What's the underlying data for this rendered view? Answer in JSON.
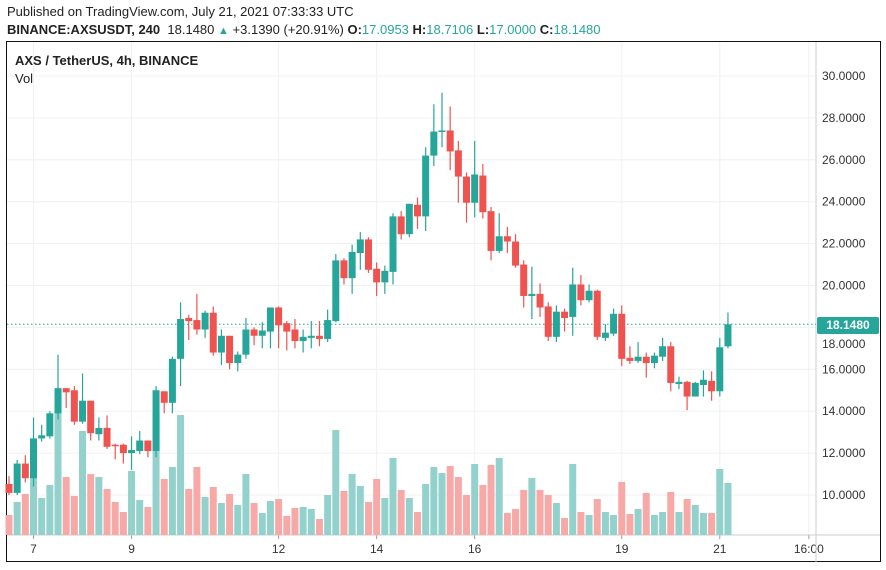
{
  "header": {
    "published": "Published on TradingView.com, July 21, 2021 07:33:33 UTC",
    "symbol": "BINANCE:AXSUSDT, 240",
    "last": "18.1480",
    "change": "+3.1390 (+20.91%)",
    "o_label": "O:",
    "o": "17.0953",
    "h_label": "H:",
    "h": "18.7106",
    "l_label": "L:",
    "l": "17.0000",
    "c_label": "C:",
    "c": "18.1480"
  },
  "legend": {
    "title": "AXS / TetherUS, 4h, BINANCE",
    "vol": "Vol"
  },
  "colors": {
    "up": "#26a69a",
    "down": "#ef5350",
    "vol_up": "#93d2cc",
    "vol_down": "#f7a9a7",
    "grid": "#f0f0f0"
  },
  "chart_data": {
    "type": "candlestick",
    "title": "AXS / TetherUS, 4h, BINANCE",
    "ylim": [
      8.2,
      31.5
    ],
    "y_ticks": [
      "10.0000",
      "12.0000",
      "14.0000",
      "16.0000",
      "18.0000",
      "20.0000",
      "22.0000",
      "24.0000",
      "26.0000",
      "28.0000",
      "30.0000"
    ],
    "y_tick_values": [
      10,
      12,
      14,
      16,
      18,
      20,
      22,
      24,
      26,
      28,
      30
    ],
    "x_ticks": [
      {
        "label": "7",
        "index": 3
      },
      {
        "label": "9",
        "index": 15
      },
      {
        "label": "12",
        "index": 33
      },
      {
        "label": "14",
        "index": 45
      },
      {
        "label": "16",
        "index": 57
      },
      {
        "label": "19",
        "index": 75
      },
      {
        "label": "21",
        "index": 87
      },
      {
        "label": "16:00",
        "index": 97.9
      }
    ],
    "last_price": "18.1480",
    "last_price_value": 18.148,
    "fields": [
      "open",
      "high",
      "low",
      "close",
      "volume_relative"
    ],
    "candles": [
      [
        10.53,
        10.9,
        10.0,
        10.1,
        20
      ],
      [
        10.1,
        11.67,
        10.0,
        11.5,
        33
      ],
      [
        11.5,
        11.9,
        10.6,
        10.8,
        41
      ],
      [
        10.8,
        13.7,
        10.4,
        12.7,
        85
      ],
      [
        12.7,
        13.35,
        12.55,
        12.85,
        37
      ],
      [
        12.8,
        14.0,
        12.7,
        13.9,
        50
      ],
      [
        13.9,
        16.7,
        13.6,
        15.1,
        123
      ],
      [
        15.1,
        15.1,
        14.15,
        14.9,
        58
      ],
      [
        15.0,
        15.2,
        13.35,
        13.5,
        39
      ],
      [
        13.5,
        15.8,
        13.4,
        14.5,
        104
      ],
      [
        14.5,
        14.5,
        12.6,
        12.95,
        61
      ],
      [
        12.9,
        13.7,
        12.6,
        13.2,
        58
      ],
      [
        13.2,
        13.8,
        12.2,
        12.3,
        46
      ],
      [
        12.4,
        12.45,
        11.7,
        12.35,
        33
      ],
      [
        12.4,
        12.45,
        11.5,
        12.0,
        23
      ],
      [
        12.0,
        12.8,
        11.2,
        12.15,
        64
      ],
      [
        12.1,
        13.05,
        11.95,
        12.6,
        35
      ],
      [
        12.6,
        12.6,
        11.8,
        12.1,
        28
      ],
      [
        12.1,
        15.2,
        11.8,
        15.0,
        122
      ],
      [
        14.95,
        14.95,
        13.9,
        14.4,
        56
      ],
      [
        14.4,
        16.6,
        13.9,
        16.5,
        68
      ],
      [
        16.5,
        19.2,
        15.2,
        18.4,
        120
      ],
      [
        18.45,
        18.6,
        17.4,
        18.3,
        46
      ],
      [
        18.35,
        19.6,
        17.65,
        17.9,
        68
      ],
      [
        17.9,
        18.8,
        17.5,
        18.7,
        38
      ],
      [
        18.7,
        19.0,
        16.65,
        16.8,
        48
      ],
      [
        16.8,
        17.9,
        16.2,
        17.6,
        32
      ],
      [
        17.6,
        17.6,
        16.0,
        16.3,
        41
      ],
      [
        16.3,
        16.85,
        15.9,
        16.7,
        30
      ],
      [
        16.7,
        18.45,
        16.5,
        17.9,
        61
      ],
      [
        17.9,
        18.0,
        17.15,
        17.6,
        32
      ],
      [
        17.6,
        18.25,
        17.0,
        17.85,
        22
      ],
      [
        17.8,
        18.95,
        17.0,
        18.95,
        34
      ],
      [
        18.95,
        19.0,
        17.0,
        18.1,
        36
      ],
      [
        18.2,
        18.3,
        16.9,
        17.8,
        19
      ],
      [
        17.9,
        18.4,
        17.0,
        17.35,
        27
      ],
      [
        17.35,
        17.9,
        16.8,
        17.55,
        28
      ],
      [
        17.5,
        18.3,
        17.0,
        17.6,
        26
      ],
      [
        17.6,
        18.3,
        17.1,
        17.45,
        16
      ],
      [
        17.45,
        18.85,
        17.3,
        18.35,
        40
      ],
      [
        18.3,
        21.5,
        18.25,
        21.2,
        105
      ],
      [
        21.2,
        21.3,
        20.05,
        20.35,
        44
      ],
      [
        20.35,
        21.95,
        19.6,
        21.6,
        61
      ],
      [
        21.55,
        22.55,
        20.75,
        22.2,
        49
      ],
      [
        22.2,
        22.3,
        20.6,
        20.75,
        33
      ],
      [
        20.8,
        21.1,
        19.5,
        20.15,
        56
      ],
      [
        20.15,
        20.95,
        19.6,
        20.7,
        37
      ],
      [
        20.65,
        23.45,
        20.05,
        23.3,
        77
      ],
      [
        23.3,
        23.55,
        22.2,
        22.45,
        45
      ],
      [
        22.45,
        23.9,
        22.3,
        23.9,
        37
      ],
      [
        23.85,
        24.2,
        22.7,
        23.3,
        23
      ],
      [
        23.3,
        26.6,
        22.6,
        26.2,
        51
      ],
      [
        26.2,
        28.65,
        25.7,
        27.35,
        68
      ],
      [
        27.35,
        29.2,
        26.6,
        27.4,
        62
      ],
      [
        27.4,
        28.55,
        25.5,
        26.4,
        69
      ],
      [
        26.45,
        26.9,
        23.95,
        25.2,
        58
      ],
      [
        25.2,
        25.4,
        23.0,
        23.95,
        40
      ],
      [
        23.95,
        26.9,
        23.25,
        25.3,
        71
      ],
      [
        25.25,
        25.8,
        23.2,
        23.5,
        50
      ],
      [
        23.55,
        23.75,
        21.2,
        21.65,
        70
      ],
      [
        21.65,
        23.45,
        21.55,
        22.35,
        77
      ],
      [
        22.35,
        22.8,
        21.55,
        22.1,
        22
      ],
      [
        22.1,
        22.45,
        20.85,
        20.95,
        26
      ],
      [
        21.0,
        21.2,
        18.95,
        19.5,
        45
      ],
      [
        19.5,
        20.9,
        18.4,
        19.6,
        57
      ],
      [
        19.6,
        20.1,
        18.5,
        18.95,
        45
      ],
      [
        19.0,
        19.2,
        17.35,
        17.55,
        40
      ],
      [
        17.55,
        19.05,
        17.3,
        18.75,
        32
      ],
      [
        18.75,
        18.9,
        17.8,
        18.45,
        17
      ],
      [
        18.5,
        20.85,
        17.6,
        20.05,
        71
      ],
      [
        20.05,
        20.5,
        19.05,
        19.3,
        23
      ],
      [
        19.3,
        20.05,
        19.2,
        19.75,
        20
      ],
      [
        19.75,
        19.8,
        17.4,
        17.55,
        36
      ],
      [
        17.5,
        18.15,
        17.35,
        17.75,
        23
      ],
      [
        17.7,
        18.9,
        17.6,
        18.65,
        20
      ],
      [
        18.65,
        19.05,
        16.15,
        16.5,
        53
      ],
      [
        16.55,
        17.1,
        16.25,
        16.4,
        21
      ],
      [
        16.4,
        17.3,
        16.3,
        16.6,
        26
      ],
      [
        16.6,
        16.8,
        15.6,
        16.3,
        42
      ],
      [
        16.3,
        16.8,
        16.05,
        16.65,
        20
      ],
      [
        16.6,
        17.5,
        16.4,
        17.1,
        23
      ],
      [
        17.1,
        17.3,
        14.95,
        15.35,
        43
      ],
      [
        15.3,
        15.65,
        15.05,
        15.4,
        23
      ],
      [
        15.4,
        15.45,
        14.05,
        14.7,
        36
      ],
      [
        14.7,
        15.4,
        14.7,
        15.35,
        30
      ],
      [
        15.25,
        15.95,
        14.7,
        15.5,
        22
      ],
      [
        15.45,
        15.9,
        14.5,
        14.95,
        22
      ],
      [
        14.95,
        17.5,
        14.7,
        17.05,
        66
      ],
      [
        17.0953,
        18.7106,
        17.0,
        18.148,
        52
      ]
    ]
  }
}
